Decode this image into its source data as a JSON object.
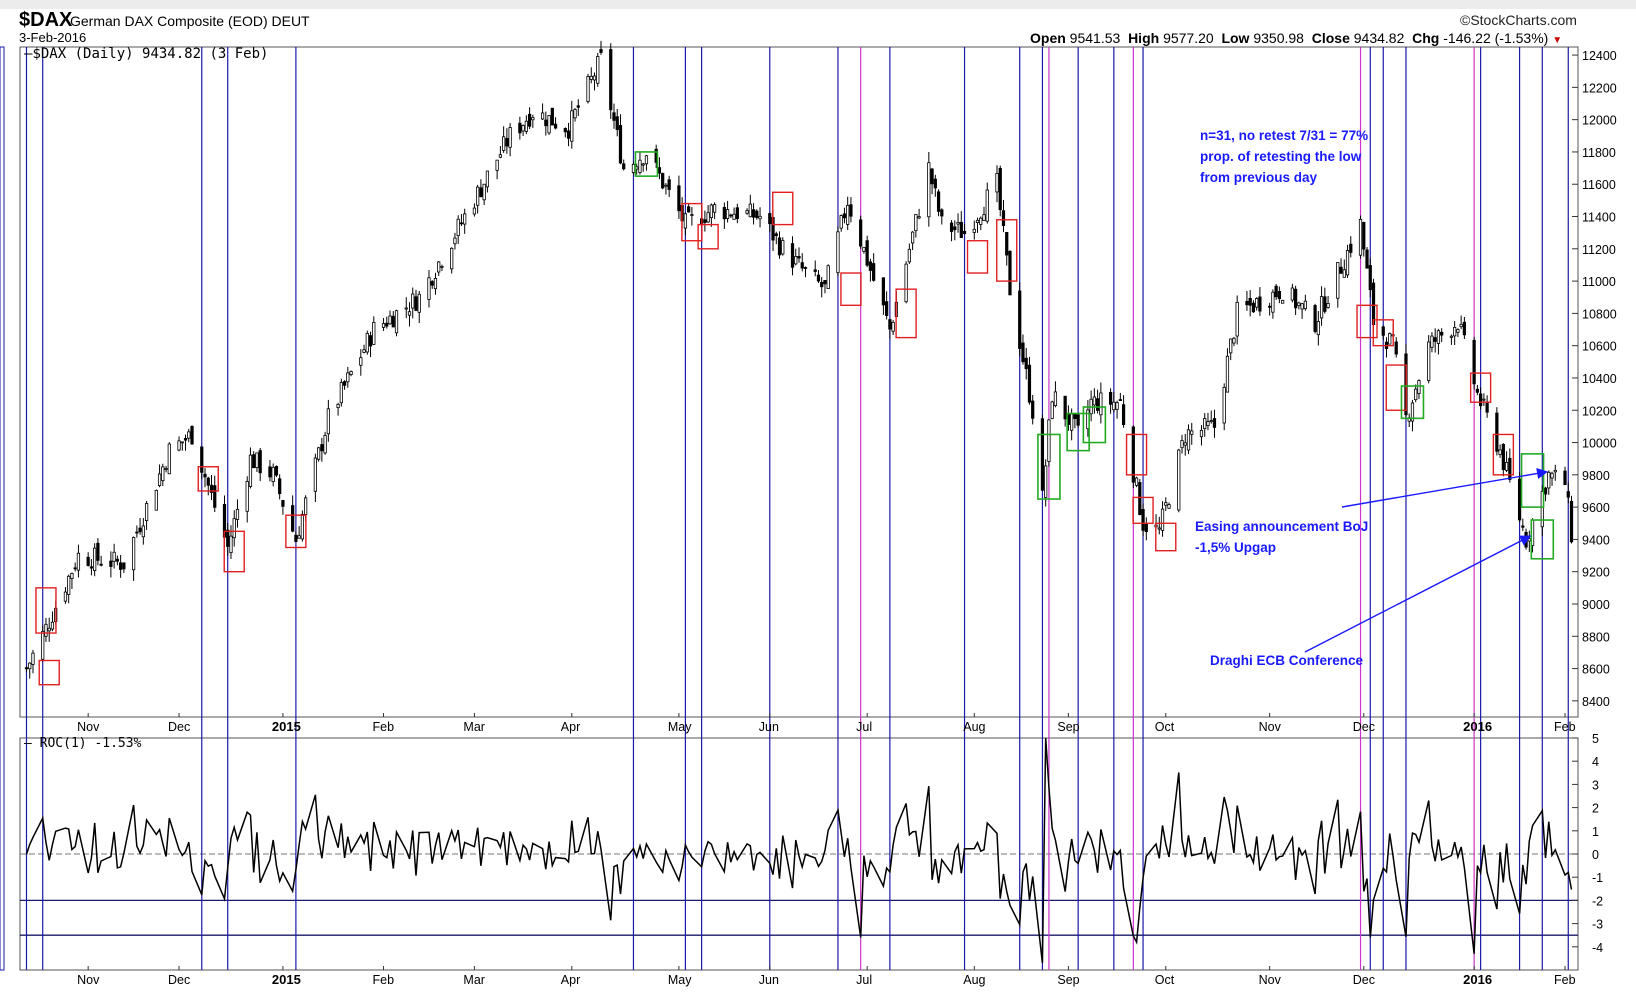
{
  "header": {
    "symbol": "$DAX",
    "description": "German DAX Composite (EOD)",
    "exchange": "DEUT",
    "date": "3-Feb-2016",
    "watermark": "©StockCharts.com",
    "open_label": "Open",
    "open": "9541.53",
    "high_label": "High",
    "high": "9577.20",
    "low_label": "Low",
    "low": "9350.98",
    "close_label": "Close",
    "close": "9434.82",
    "chg_label": "Chg",
    "chg": "-146.22 (-1.53%)"
  },
  "price_panel": {
    "legend": "$DAX (Daily) 9434.82 (3 Feb)"
  },
  "roc_panel": {
    "legend": "ROC(1) -1.53%"
  },
  "annotations": {
    "stat_line1": "n=31, no retest 7/31 = 77%",
    "stat_line2": "prop. of retesting the low",
    "stat_line3": "from previous day",
    "boj_line1": "Easing announcement BoJ",
    "boj_line2": "-1,5% Upgap",
    "draghi": "Draghi ECB Conference"
  },
  "colors": {
    "candles": "#000000",
    "blue_lines": "#1a1aa8",
    "magenta_lines": "#cc33cc",
    "red_boxes": "#e02020",
    "green_boxes": "#22aa22",
    "annotation_text": "#1a1aff"
  },
  "chart_data": [
    {
      "type": "candlestick",
      "ylim": [
        8300,
        12450
      ],
      "y_ticks": [
        8400,
        8600,
        8800,
        9000,
        9200,
        9400,
        9600,
        9800,
        10000,
        10200,
        10400,
        10600,
        10800,
        11000,
        11200,
        11400,
        11600,
        11800,
        12000,
        12200,
        12400
      ],
      "x_range": [
        "2014-10-13",
        "2016-02-05"
      ],
      "x_ticks": [
        {
          "label": "Nov",
          "date": "2014-11-03"
        },
        {
          "label": "Dec",
          "date": "2014-12-01"
        },
        {
          "label": "2015",
          "date": "2015-01-02",
          "bold": true
        },
        {
          "label": "Feb",
          "date": "2015-02-02"
        },
        {
          "label": "Mar",
          "date": "2015-03-02"
        },
        {
          "label": "Apr",
          "date": "2015-04-01"
        },
        {
          "label": "May",
          "date": "2015-05-04"
        },
        {
          "label": "Jun",
          "date": "2015-06-01"
        },
        {
          "label": "Jul",
          "date": "2015-07-01"
        },
        {
          "label": "Aug",
          "date": "2015-08-03"
        },
        {
          "label": "Sep",
          "date": "2015-09-01"
        },
        {
          "label": "Oct",
          "date": "2015-10-01"
        },
        {
          "label": "Nov",
          "date": "2015-11-02"
        },
        {
          "label": "Dec",
          "date": "2015-12-01"
        },
        {
          "label": "2016",
          "date": "2016-01-04",
          "bold": true
        },
        {
          "label": "Feb",
          "date": "2016-02-01"
        }
      ],
      "path": [
        [
          "2014-10-15",
          8600
        ],
        [
          "2014-10-21",
          8850
        ],
        [
          "2014-10-31",
          9300
        ],
        [
          "2014-11-14",
          9250
        ],
        [
          "2014-11-28",
          9950
        ],
        [
          "2014-12-05",
          10050
        ],
        [
          "2014-12-16",
          9350
        ],
        [
          "2014-12-23",
          9900
        ],
        [
          "2014-12-30",
          9800
        ],
        [
          "2015-01-06",
          9400
        ],
        [
          "2015-01-16",
          10150
        ],
        [
          "2015-01-30",
          10700
        ],
        [
          "2015-02-13",
          10900
        ],
        [
          "2015-02-27",
          11400
        ],
        [
          "2015-03-13",
          11900
        ],
        [
          "2015-03-20",
          12050
        ],
        [
          "2015-03-31",
          11950
        ],
        [
          "2015-04-10",
          12370
        ],
        [
          "2015-04-17",
          11700
        ],
        [
          "2015-04-24",
          11800
        ],
        [
          "2015-05-06",
          11350
        ],
        [
          "2015-05-15",
          11450
        ],
        [
          "2015-05-29",
          11400
        ],
        [
          "2015-06-05",
          11200
        ],
        [
          "2015-06-12",
          11050
        ],
        [
          "2015-06-18",
          10950
        ],
        [
          "2015-06-25",
          11500
        ],
        [
          "2015-07-08",
          10700
        ],
        [
          "2015-07-20",
          11700
        ],
        [
          "2015-07-24",
          11350
        ],
        [
          "2015-07-31",
          11300
        ],
        [
          "2015-08-10",
          11600
        ],
        [
          "2015-08-14",
          10950
        ],
        [
          "2015-08-21",
          10200
        ],
        [
          "2015-08-24",
          9650
        ],
        [
          "2015-08-27",
          10300
        ],
        [
          "2015-09-04",
          10050
        ],
        [
          "2015-09-08",
          10250
        ],
        [
          "2015-09-17",
          10250
        ],
        [
          "2015-09-24",
          9500
        ],
        [
          "2015-09-29",
          9450
        ],
        [
          "2015-10-07",
          10050
        ],
        [
          "2015-10-16",
          10100
        ],
        [
          "2015-10-23",
          10800
        ],
        [
          "2015-11-06",
          10950
        ],
        [
          "2015-11-16",
          10750
        ],
        [
          "2015-11-30",
          11350
        ],
        [
          "2015-12-04",
          10750
        ],
        [
          "2015-12-10",
          10600
        ],
        [
          "2015-12-14",
          10150
        ],
        [
          "2015-12-21",
          10600
        ],
        [
          "2015-12-30",
          10750
        ],
        [
          "2016-01-05",
          10300
        ],
        [
          "2016-01-12",
          9950
        ],
        [
          "2016-01-20",
          9400
        ],
        [
          "2016-01-27",
          9800
        ],
        [
          "2016-02-01",
          9750
        ],
        [
          "2016-02-03",
          9434.82
        ]
      ]
    },
    {
      "type": "line",
      "series": [
        {
          "name": "ROC(1)",
          "last": -1.53
        }
      ],
      "ylim": [
        -5,
        5
      ],
      "y_ticks": [
        -4,
        -3,
        -2,
        -1,
        0,
        1,
        2,
        3,
        4,
        5
      ],
      "reference_levels": [
        0,
        -2,
        -3.5
      ],
      "extremes": [
        [
          "2015-08-24",
          -4.7
        ],
        [
          "2015-08-25",
          5.0
        ],
        [
          "2015-12-03",
          -3.6
        ],
        [
          "2016-01-04",
          -4.3
        ],
        [
          "2015-06-29",
          -3.6
        ],
        [
          "2015-09-22",
          -3.8
        ]
      ]
    }
  ],
  "markers": {
    "blue_vlines": [
      "2014-10-15",
      "2014-10-20",
      "2014-12-08",
      "2014-12-16",
      "2015-01-06",
      "2015-04-20",
      "2015-05-06",
      "2015-05-11",
      "2015-06-01",
      "2015-06-22",
      "2015-07-08",
      "2015-07-31",
      "2015-08-17",
      "2015-08-24",
      "2015-09-04",
      "2015-09-15",
      "2015-09-24",
      "2015-12-03",
      "2015-12-07",
      "2015-12-14",
      "2016-01-06",
      "2016-01-18",
      "2016-01-25",
      "2016-02-02"
    ],
    "magenta_vlines": [
      "2015-06-29",
      "2015-08-26",
      "2015-09-21",
      "2015-11-30",
      "2016-01-04"
    ],
    "red_boxes": [
      [
        "2014-10-21",
        8820,
        9100
      ],
      [
        "2014-10-22",
        8500,
        8650
      ],
      [
        "2014-12-10",
        9700,
        9850
      ],
      [
        "2014-12-18",
        9200,
        9450
      ],
      [
        "2015-01-06",
        9350,
        9550
      ],
      [
        "2015-05-08",
        11250,
        11480
      ],
      [
        "2015-05-13",
        11200,
        11350
      ],
      [
        "2015-06-05",
        11350,
        11550
      ],
      [
        "2015-06-26",
        10850,
        11050
      ],
      [
        "2015-07-13",
        10650,
        10950
      ],
      [
        "2015-08-04",
        11050,
        11250
      ],
      [
        "2015-08-13",
        11000,
        11380
      ],
      [
        "2015-09-22",
        9800,
        10050
      ],
      [
        "2015-09-24",
        9500,
        9660
      ],
      [
        "2015-10-01",
        9330,
        9500
      ],
      [
        "2015-12-02",
        10650,
        10850
      ],
      [
        "2015-12-07",
        10600,
        10760
      ],
      [
        "2015-12-11",
        10200,
        10480
      ],
      [
        "2016-01-06",
        10250,
        10430
      ],
      [
        "2016-01-13",
        9800,
        10050
      ]
    ],
    "green_boxes": [
      [
        "2015-04-24",
        11650,
        11800
      ],
      [
        "2015-08-26",
        9650,
        10050
      ],
      [
        "2015-09-04",
        9950,
        10180
      ],
      [
        "2015-09-09",
        10000,
        10220
      ],
      [
        "2015-12-16",
        10150,
        10350
      ],
      [
        "2016-01-22",
        9600,
        9930
      ],
      [
        "2016-01-25",
        9280,
        9520
      ]
    ]
  }
}
